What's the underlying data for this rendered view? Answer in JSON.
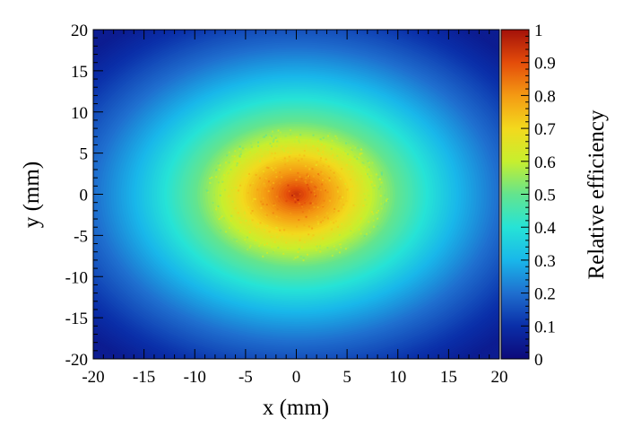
{
  "chart_data": {
    "type": "heatmap",
    "title": "",
    "xlabel": "x (mm)",
    "ylabel": "y (mm)",
    "xlim": [
      -20,
      20
    ],
    "ylim": [
      -20,
      20
    ],
    "x_ticks": [
      "-20",
      "-15",
      "-10",
      "-5",
      "0",
      "5",
      "10",
      "15",
      "20"
    ],
    "y_ticks": [
      "-20",
      "-15",
      "-10",
      "-5",
      "0",
      "5",
      "10",
      "15",
      "20"
    ],
    "x_tick_values": [
      -20,
      -15,
      -10,
      -5,
      0,
      5,
      10,
      15,
      20
    ],
    "y_tick_values": [
      -20,
      -15,
      -10,
      -5,
      0,
      5,
      10,
      15,
      20
    ],
    "colorbar": {
      "label": "Relative efficiency",
      "range": [
        0,
        1
      ],
      "ticks": [
        "0",
        "0.1",
        "0.2",
        "0.3",
        "0.4",
        "0.5",
        "0.6",
        "0.7",
        "0.8",
        "0.9",
        "1"
      ],
      "tick_values": [
        0,
        0.1,
        0.2,
        0.3,
        0.4,
        0.5,
        0.6,
        0.7,
        0.8,
        0.9,
        1.0
      ],
      "colormap": "rainbow (dark blue → cyan → green → yellow → orange → red)"
    },
    "distribution": {
      "shape": "2D radial falloff centred at origin",
      "center": [
        0,
        0
      ],
      "samples": [
        {
          "r": 0,
          "value": 0.95
        },
        {
          "r": 2,
          "value": 0.85
        },
        {
          "r": 5,
          "value": 0.72
        },
        {
          "r": 7.5,
          "value": 0.6
        },
        {
          "r": 10,
          "value": 0.5
        },
        {
          "r": 13,
          "value": 0.4
        },
        {
          "r": 16,
          "value": 0.3
        },
        {
          "r": 20,
          "value": 0.2
        },
        {
          "r": 24,
          "value": 0.12
        },
        {
          "r": 28,
          "value": 0.05
        }
      ]
    }
  }
}
